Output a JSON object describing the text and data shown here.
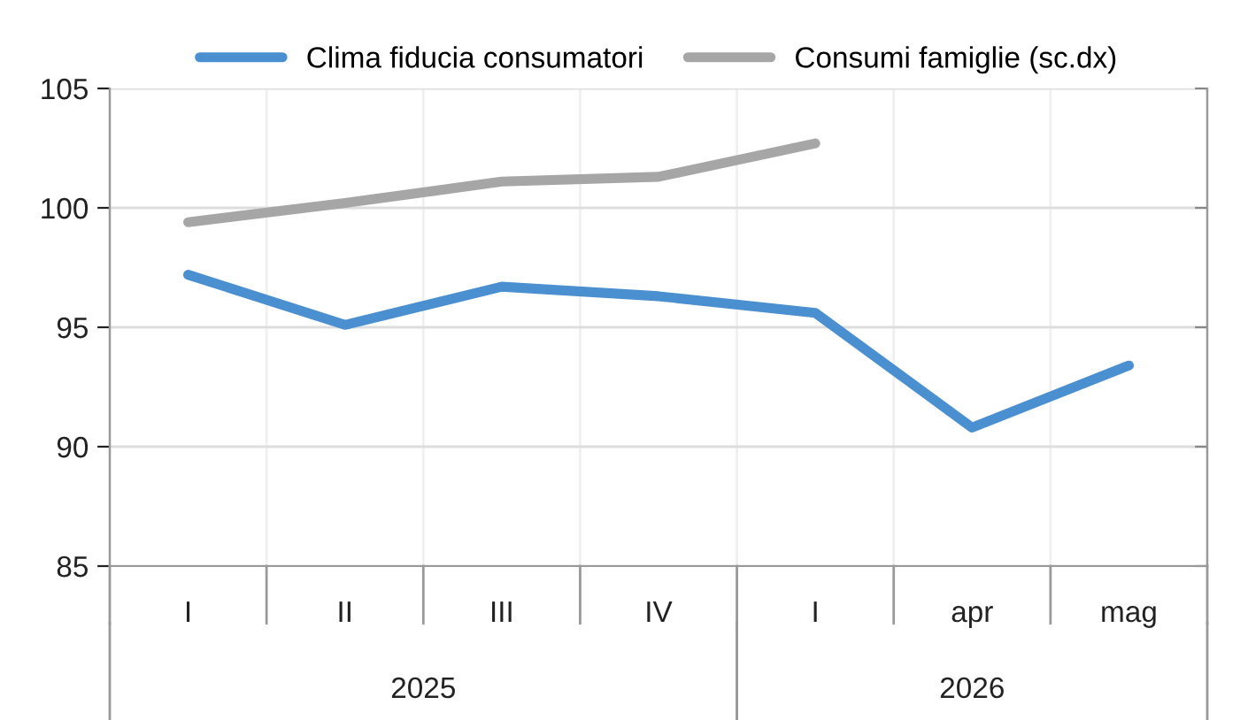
{
  "chart_data": {
    "type": "line",
    "categories": [
      "I",
      "II",
      "III",
      "IV",
      "I",
      "apr",
      "mag"
    ],
    "series": [
      {
        "name": "Clima fiducia consumatori",
        "color": "#4a8fd0",
        "values": [
          97.2,
          95.1,
          96.7,
          96.3,
          95.6,
          90.8,
          93.4
        ]
      },
      {
        "name": "Consumi famiglie (sc.dx)",
        "color": "#a6a6a6",
        "values": [
          99.4,
          100.2,
          101.1,
          101.3,
          102.7,
          null,
          null
        ]
      }
    ],
    "ylim": [
      85,
      105
    ],
    "yticks": [
      85,
      90,
      95,
      100,
      105
    ],
    "annotations": [
      "2025",
      "2026"
    ],
    "grid": "y",
    "legend": "top",
    "marker": "none",
    "line_style": "solid"
  }
}
